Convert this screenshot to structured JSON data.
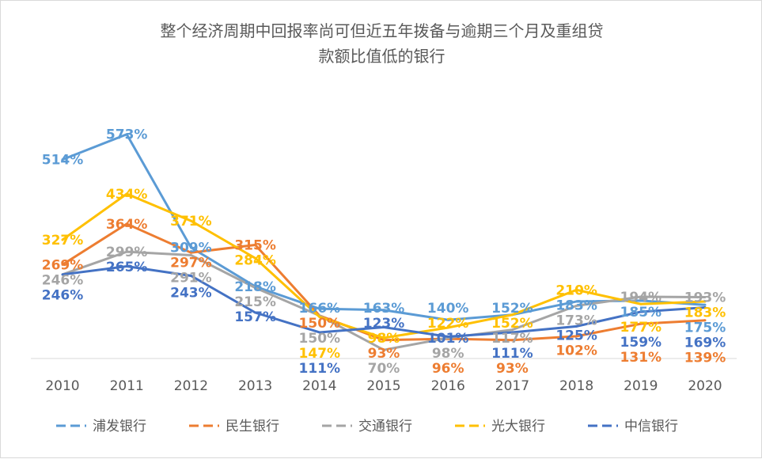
{
  "chart_data": {
    "type": "line",
    "title": "整个经济周期中回报率尚可但近五年拨备与逾期三个月及重组贷款额比值低的银行",
    "title_lines": [
      "整个经济周期中回报率尚可但近五年拨备与逾期三个月及重组贷",
      "款额比值低的银行"
    ],
    "categories": [
      "2010",
      "2011",
      "2012",
      "2013",
      "2014",
      "2015",
      "2016",
      "2017",
      "2018",
      "2019",
      "2020"
    ],
    "ylim": [
      50,
      650
    ],
    "grid": false,
    "legend": "bottom",
    "series": [
      {
        "name": "浦发银行",
        "color": "#5b9bd5",
        "values": [
          514,
          573,
          309,
          218,
          166,
          163,
          140,
          152,
          183,
          185,
          175
        ],
        "labels": [
          "514%",
          "573%",
          "309%",
          "218%",
          "166%",
          "163%",
          "140%",
          "152%",
          "183%",
          "185%",
          "175%"
        ]
      },
      {
        "name": "民生银行",
        "color": "#ed7d31",
        "values": [
          269,
          364,
          297,
          315,
          150,
          93,
          96,
          93,
          102,
          131,
          139
        ],
        "labels": [
          "269%",
          "364%",
          "297%",
          "315%",
          "150%",
          "93%",
          "96%",
          "93%",
          "102%",
          "131%",
          "139%"
        ]
      },
      {
        "name": "交通银行",
        "color": "#a5a5a5",
        "values": [
          246,
          299,
          291,
          215,
          150,
          70,
          98,
          117,
          173,
          194,
          193
        ],
        "labels": [
          "246%",
          "299%",
          "291%",
          "215%",
          "150%",
          "70%",
          "98%",
          "117%",
          "173%",
          "194%",
          "193%"
        ]
      },
      {
        "name": "光大银行",
        "color": "#ffc000",
        "values": [
          327,
          434,
          371,
          284,
          147,
          98,
          122,
          152,
          210,
          177,
          183
        ],
        "labels": [
          "327%",
          "434%",
          "371%",
          "284%",
          "147%",
          "98%",
          "122%",
          "152%",
          "210%",
          "177%",
          "183%"
        ]
      },
      {
        "name": "中信银行",
        "color": "#4472c4",
        "values": [
          246,
          265,
          243,
          157,
          111,
          123,
          101,
          111,
          125,
          159,
          169
        ],
        "labels": [
          "246%",
          "265%",
          "243%",
          "157%",
          "111%",
          "123%",
          "101%",
          "111%",
          "125%",
          "159%",
          "169%"
        ]
      }
    ]
  }
}
